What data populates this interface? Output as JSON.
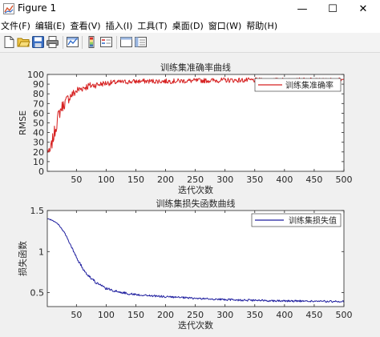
{
  "window": {
    "title": "Figure 1",
    "minimize_glyph": "—",
    "maximize_glyph": "☐",
    "close_glyph": "✕"
  },
  "menu": [
    "文件(F)",
    "编辑(E)",
    "查看(V)",
    "插入(I)",
    "工具(T)",
    "桌面(D)",
    "窗口(W)",
    "帮助(H)"
  ],
  "toolbar_icons": [
    "new-figure-icon",
    "open-file-icon",
    "save-icon",
    "print-icon",
    "link-plot-icon",
    "insert-colorbar-icon",
    "insert-legend-icon",
    "hide-plot-tools-icon",
    "show-plot-tools-icon"
  ],
  "colors": {
    "accuracy_line": "#d62020",
    "loss_line": "#1f1f9f",
    "axes_bg": "#ffffff",
    "figure_bg": "#f0f0f0"
  },
  "chart_data": [
    {
      "type": "line",
      "title": "训练集准确率曲线",
      "xlabel": "迭代次数",
      "ylabel": "RMSE",
      "xlim": [
        1,
        500
      ],
      "ylim": [
        0,
        100
      ],
      "xticks": [
        50,
        100,
        150,
        200,
        250,
        300,
        350,
        400,
        450,
        500
      ],
      "yticks": [
        0,
        10,
        20,
        30,
        40,
        50,
        60,
        70,
        80,
        90,
        100
      ],
      "xtick_labels": [
        "50",
        "100",
        "150",
        "200",
        "250",
        "300",
        "350",
        "400",
        "450",
        "500"
      ],
      "ytick_labels": [
        "0",
        "10",
        "20",
        "30",
        "40",
        "50",
        "60",
        "70",
        "80",
        "90",
        "100"
      ],
      "legend_position": "top-right",
      "series": [
        {
          "name": "训练集准确率",
          "color": "#d62020",
          "x": [
            1,
            5,
            10,
            15,
            20,
            25,
            30,
            35,
            40,
            45,
            50,
            60,
            70,
            80,
            90,
            100,
            120,
            140,
            160,
            180,
            200,
            250,
            300,
            350,
            400,
            450,
            500
          ],
          "y": [
            22,
            19,
            32,
            45,
            58,
            66,
            70,
            74,
            78,
            80,
            83,
            86,
            88,
            89,
            90,
            91,
            92,
            92.5,
            93,
            93,
            93,
            93.5,
            94,
            94,
            94,
            94,
            94
          ],
          "noise_amplitude": [
            4,
            4,
            7,
            7,
            7,
            6,
            6,
            6,
            5,
            5,
            5,
            4,
            4,
            3.5,
            3,
            3,
            2.5,
            2.5,
            2.5,
            2.5,
            2.5,
            2.5,
            2.5,
            2.5,
            2.5,
            2.5,
            2.5
          ]
        }
      ]
    },
    {
      "type": "line",
      "title": "训练集损失函数曲线",
      "xlabel": "迭代次数",
      "ylabel": "损失函数",
      "xlim": [
        1,
        500
      ],
      "ylim": [
        0.33,
        1.5
      ],
      "xticks": [
        50,
        100,
        150,
        200,
        250,
        300,
        350,
        400,
        450,
        500
      ],
      "yticks": [
        0.5,
        1,
        1.5
      ],
      "xtick_labels": [
        "50",
        "100",
        "150",
        "200",
        "250",
        "300",
        "350",
        "400",
        "450",
        "500"
      ],
      "ytick_labels": [
        "0.5",
        "1",
        "1.5"
      ],
      "legend_position": "top-right",
      "series": [
        {
          "name": "训练集损失值",
          "color": "#1f1f9f",
          "x": [
            1,
            10,
            20,
            30,
            40,
            50,
            60,
            70,
            80,
            90,
            100,
            120,
            140,
            160,
            180,
            200,
            250,
            300,
            350,
            400,
            450,
            500
          ],
          "y": [
            1.4,
            1.38,
            1.33,
            1.23,
            1.08,
            0.93,
            0.8,
            0.71,
            0.64,
            0.59,
            0.55,
            0.51,
            0.485,
            0.47,
            0.46,
            0.45,
            0.43,
            0.415,
            0.405,
            0.4,
            0.395,
            0.39
          ],
          "noise_amplitude": [
            0.005,
            0.005,
            0.006,
            0.008,
            0.012,
            0.016,
            0.018,
            0.018,
            0.018,
            0.016,
            0.015,
            0.014,
            0.013,
            0.013,
            0.012,
            0.012,
            0.012,
            0.012,
            0.012,
            0.012,
            0.012,
            0.012
          ]
        }
      ]
    }
  ]
}
